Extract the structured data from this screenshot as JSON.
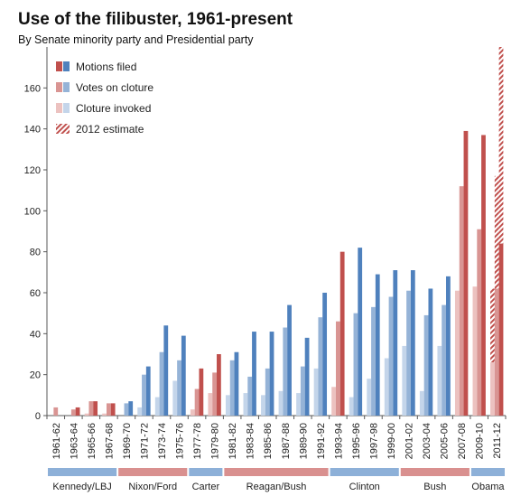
{
  "chart_data": {
    "type": "bar",
    "title": "Use of the filibuster, 1961-present",
    "subtitle": "By Senate minority party and Presidential party",
    "categories": [
      "1961-62",
      "1963-64",
      "1965-66",
      "1967-68",
      "1969-70",
      "1971-72",
      "1973-74",
      "1975-76",
      "1977-78",
      "1979-80",
      "1981-82",
      "1983-84",
      "1985-86",
      "1987-88",
      "1989-90",
      "1991-92",
      "1993-94",
      "1995-96",
      "1997-98",
      "1999-00",
      "2001-02",
      "2003-04",
      "2005-06",
      "2007-08",
      "2009-10",
      "2011-12"
    ],
    "minority_party": [
      "R",
      "R",
      "R",
      "R",
      "D",
      "D",
      "D",
      "D",
      "R",
      "R",
      "D",
      "D",
      "D",
      "D",
      "D",
      "D",
      "R",
      "D",
      "D",
      "D",
      "D",
      "D",
      "D",
      "R",
      "R",
      "R"
    ],
    "series": [
      {
        "name": "Motions filed",
        "values": [
          0,
          4,
          7,
          6,
          7,
          24,
          44,
          39,
          23,
          30,
          31,
          41,
          41,
          54,
          38,
          60,
          80,
          82,
          69,
          71,
          71,
          62,
          68,
          139,
          137,
          84
        ]
      },
      {
        "name": "Votes on cloture",
        "values": [
          4,
          3,
          7,
          6,
          6,
          20,
          31,
          27,
          13,
          21,
          27,
          19,
          23,
          43,
          24,
          48,
          46,
          50,
          53,
          58,
          61,
          49,
          54,
          112,
          91,
          62
        ]
      },
      {
        "name": "Cloture invoked",
        "values": [
          0,
          0,
          1,
          1,
          0,
          4,
          9,
          17,
          3,
          11,
          10,
          11,
          10,
          12,
          11,
          23,
          14,
          9,
          18,
          28,
          34,
          12,
          34,
          61,
          63,
          26
        ]
      }
    ],
    "estimate": {
      "name": "2012 estimate",
      "category": "2011-12",
      "values": [
        180,
        117,
        62
      ]
    },
    "ylim": [
      0,
      180
    ],
    "yticks": [
      0,
      20,
      40,
      60,
      80,
      100,
      120,
      140,
      160
    ],
    "legend_position": "top-left",
    "colors": {
      "R": [
        "#c0504d",
        "#d99593",
        "#ecc2c0"
      ],
      "D": [
        "#4f81bd",
        "#95b3d7",
        "#c4d5ea"
      ],
      "axis": "#595959"
    },
    "presidencies": [
      {
        "label": "Kennedy/LBJ",
        "party": "D",
        "start": "1961-62",
        "end": "1967-68"
      },
      {
        "label": "Nixon/Ford",
        "party": "R",
        "start": "1969-70",
        "end": "1975-76"
      },
      {
        "label": "Carter",
        "party": "D",
        "start": "1977-78",
        "end": "1979-80"
      },
      {
        "label": "Reagan/Bush",
        "party": "R",
        "start": "1981-82",
        "end": "1991-92"
      },
      {
        "label": "Clinton",
        "party": "D",
        "start": "1993-94",
        "end": "1999-00"
      },
      {
        "label": "Bush",
        "party": "R",
        "start": "2001-02",
        "end": "2007-08"
      },
      {
        "label": "Obama",
        "party": "D",
        "start": "2009-10",
        "end": "2011-12"
      }
    ]
  }
}
